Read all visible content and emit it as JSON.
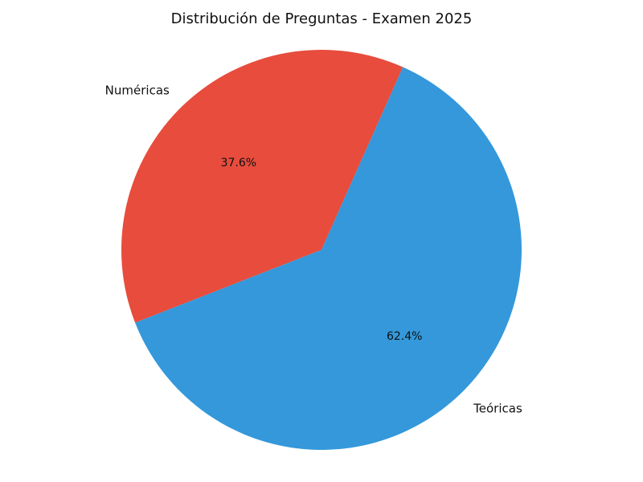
{
  "chart_data": {
    "type": "pie",
    "title": "Distribución de Preguntas - Examen 2025",
    "slices": [
      {
        "label": "Numéricas",
        "value": 37.6,
        "value_label": "37.6%",
        "color": "#e74c3c"
      },
      {
        "label": "Teóricas",
        "value": 62.4,
        "value_label": "62.4%",
        "color": "#3498db"
      }
    ],
    "start_angle": 66,
    "direction": "counterclockwise"
  }
}
